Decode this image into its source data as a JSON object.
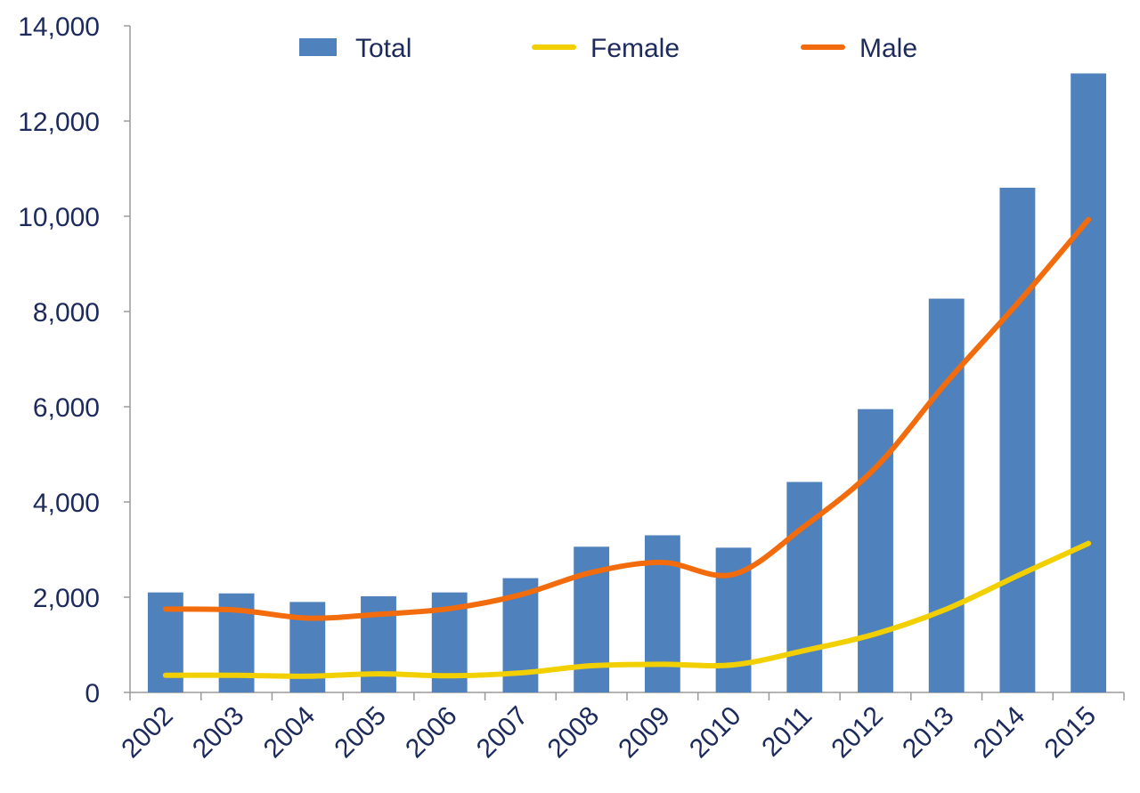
{
  "chart_data": {
    "type": "bar",
    "title": "",
    "xlabel": "",
    "ylabel": "",
    "categories": [
      "2002",
      "2003",
      "2004",
      "2005",
      "2006",
      "2007",
      "2008",
      "2009",
      "2010",
      "2011",
      "2012",
      "2013",
      "2014",
      "2015"
    ],
    "ylim": [
      0,
      14000
    ],
    "yticks": [
      0,
      2000,
      4000,
      6000,
      8000,
      10000,
      12000,
      14000
    ],
    "ytick_labels": [
      "0",
      "2,000",
      "4,000",
      "6,000",
      "8,000",
      "10,000",
      "12,000",
      "14,000"
    ],
    "grid": false,
    "legend_position": "top",
    "series": [
      {
        "name": "Total",
        "kind": "bar",
        "color": "#4f81bd",
        "values": [
          2100,
          2080,
          1900,
          2020,
          2100,
          2400,
          3060,
          3300,
          3040,
          4420,
          5950,
          8270,
          10600,
          13000
        ]
      },
      {
        "name": "Female",
        "kind": "line",
        "color": "#f2d000",
        "values": [
          360,
          360,
          340,
          390,
          350,
          410,
          560,
          590,
          580,
          880,
          1230,
          1750,
          2450,
          3130
        ]
      },
      {
        "name": "Male",
        "kind": "line",
        "color": "#f26c0d",
        "values": [
          1750,
          1730,
          1560,
          1640,
          1760,
          2050,
          2520,
          2730,
          2480,
          3490,
          4720,
          6510,
          8170,
          9930
        ]
      }
    ]
  }
}
